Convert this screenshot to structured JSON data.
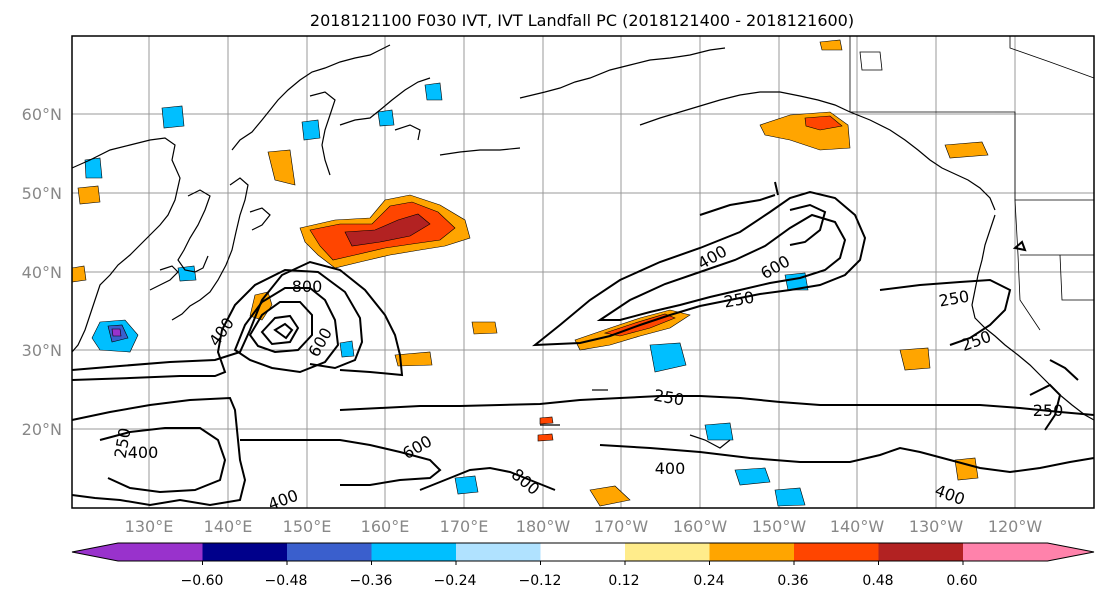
{
  "title": "2018121100 F030 IVT, IVT Landfall PC (2018121400 - 2018121600)",
  "lat_labels": [
    "60°N",
    "50°N",
    "40°N",
    "30°N",
    "20°N"
  ],
  "lon_labels": [
    "130°E",
    "140°E",
    "150°E",
    "160°E",
    "170°E",
    "180°W",
    "170°W",
    "160°W",
    "150°W",
    "140°W",
    "130°W",
    "120°W"
  ],
  "contour_labels": [
    "800",
    "400",
    "600",
    "400",
    "600",
    "250",
    "250",
    "250",
    "250",
    "600",
    "800",
    "400",
    "250",
    "400",
    "400",
    "250",
    "400"
  ],
  "colorbar": {
    "ticks": [
      "−0.60",
      "−0.48",
      "−0.36",
      "−0.24",
      "−0.12",
      "0.12",
      "0.24",
      "0.36",
      "0.48",
      "0.60"
    ],
    "colors": [
      "#9932cc",
      "#00008b",
      "#3a5fcd",
      "#00bfff",
      "#b0e2ff",
      "#ffffff",
      "#ffec8b",
      "#ffa500",
      "#ff4500",
      "#b22222",
      "#ff82ab",
      "#ff82ab"
    ]
  }
}
